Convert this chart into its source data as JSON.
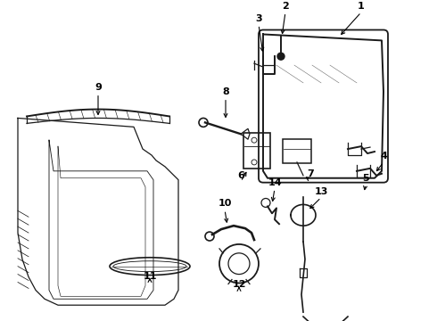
{
  "background_color": "#ffffff",
  "line_color": "#1a1a1a",
  "label_color": "#000000",
  "label_fontsize": 8,
  "label_fontweight": "bold",
  "fig_width": 4.9,
  "fig_height": 3.6,
  "dpi": 100
}
